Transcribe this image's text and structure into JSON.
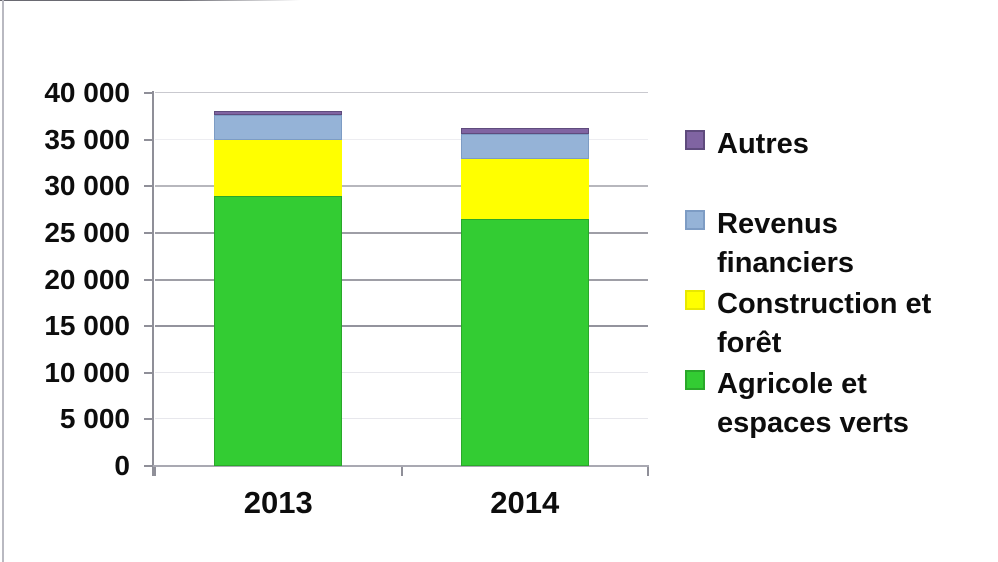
{
  "chart_data": {
    "type": "bar",
    "stacked": true,
    "title": "",
    "xlabel": "",
    "ylabel": "",
    "categories": [
      "2013",
      "2014"
    ],
    "series": [
      {
        "name": "Agricole et espaces verts",
        "color": "#33CC33",
        "border": "#2aa82a",
        "values": [
          29000,
          26500
        ]
      },
      {
        "name": "Construction et forêt",
        "color": "#FFFF00",
        "border": "#ededd00",
        "values": [
          6000,
          6400
        ]
      },
      {
        "name": "Revenus financiers",
        "color": "#95B3D7",
        "border": "#7d9cc4",
        "values": [
          2600,
          2700
        ]
      },
      {
        "name": "Autres",
        "color": "#8064A2",
        "border": "#5f4b7d",
        "values": [
          500,
          600
        ]
      }
    ],
    "totals_approx": [
      38100,
      36200
    ],
    "ylim": [
      0,
      40000
    ],
    "ytick_step": 5000,
    "yticks": [
      "40 000",
      "35 000",
      "30 000",
      "25 000",
      "20 000",
      "15 000",
      "10 000",
      "5 000",
      "0"
    ],
    "grid": "horizontal",
    "legend_position": "right",
    "legend": [
      {
        "label_lines": [
          "Autres"
        ],
        "color": "#8064A2",
        "border": "#5f4b7d"
      },
      {
        "label_lines": [
          "Revenus",
          "financiers"
        ],
        "color": "#95B3D7",
        "border": "#7d9cc4"
      },
      {
        "label_lines": [
          "Construction et",
          "forêt"
        ],
        "color": "#FFFF00",
        "border": "#e8e800"
      },
      {
        "label_lines": [
          "Agricole et",
          "espaces verts"
        ],
        "color": "#33CC33",
        "border": "#2aa82a"
      }
    ]
  }
}
